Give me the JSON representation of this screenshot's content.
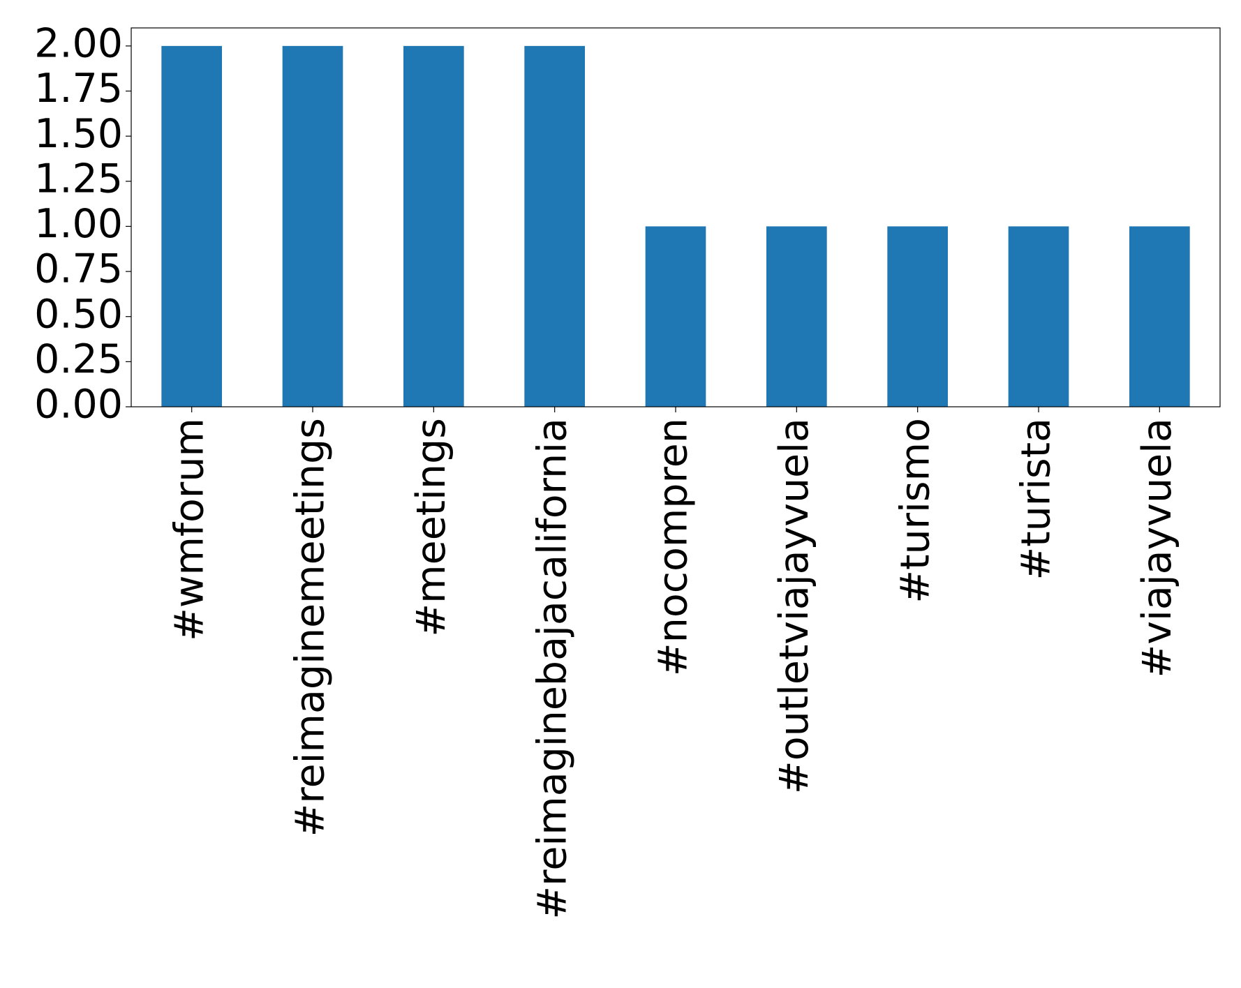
{
  "chart_data": {
    "type": "bar",
    "categories": [
      "#wmforum",
      "#reimaginemeetings",
      "#meetings",
      "#reimaginebajacalifornia",
      "#nocompren",
      "#outletviajayvuela",
      "#turismo",
      "#turista",
      "#viajayvuela"
    ],
    "values": [
      2,
      2,
      2,
      2,
      1,
      1,
      1,
      1,
      1
    ],
    "color": "#1f77b4",
    "ylim": [
      0,
      2.1
    ],
    "yticks": [
      {
        "value": 0,
        "label": "0.00"
      },
      {
        "value": 0.25,
        "label": "0.25"
      },
      {
        "value": 0.5,
        "label": "0.50"
      },
      {
        "value": 0.75,
        "label": "0.75"
      },
      {
        "value": 1,
        "label": "1.00"
      },
      {
        "value": 1.25,
        "label": "1.25"
      },
      {
        "value": 1.5,
        "label": "1.50"
      },
      {
        "value": 1.75,
        "label": "1.75"
      },
      {
        "value": 2,
        "label": "2.00"
      }
    ],
    "grid": false
  }
}
